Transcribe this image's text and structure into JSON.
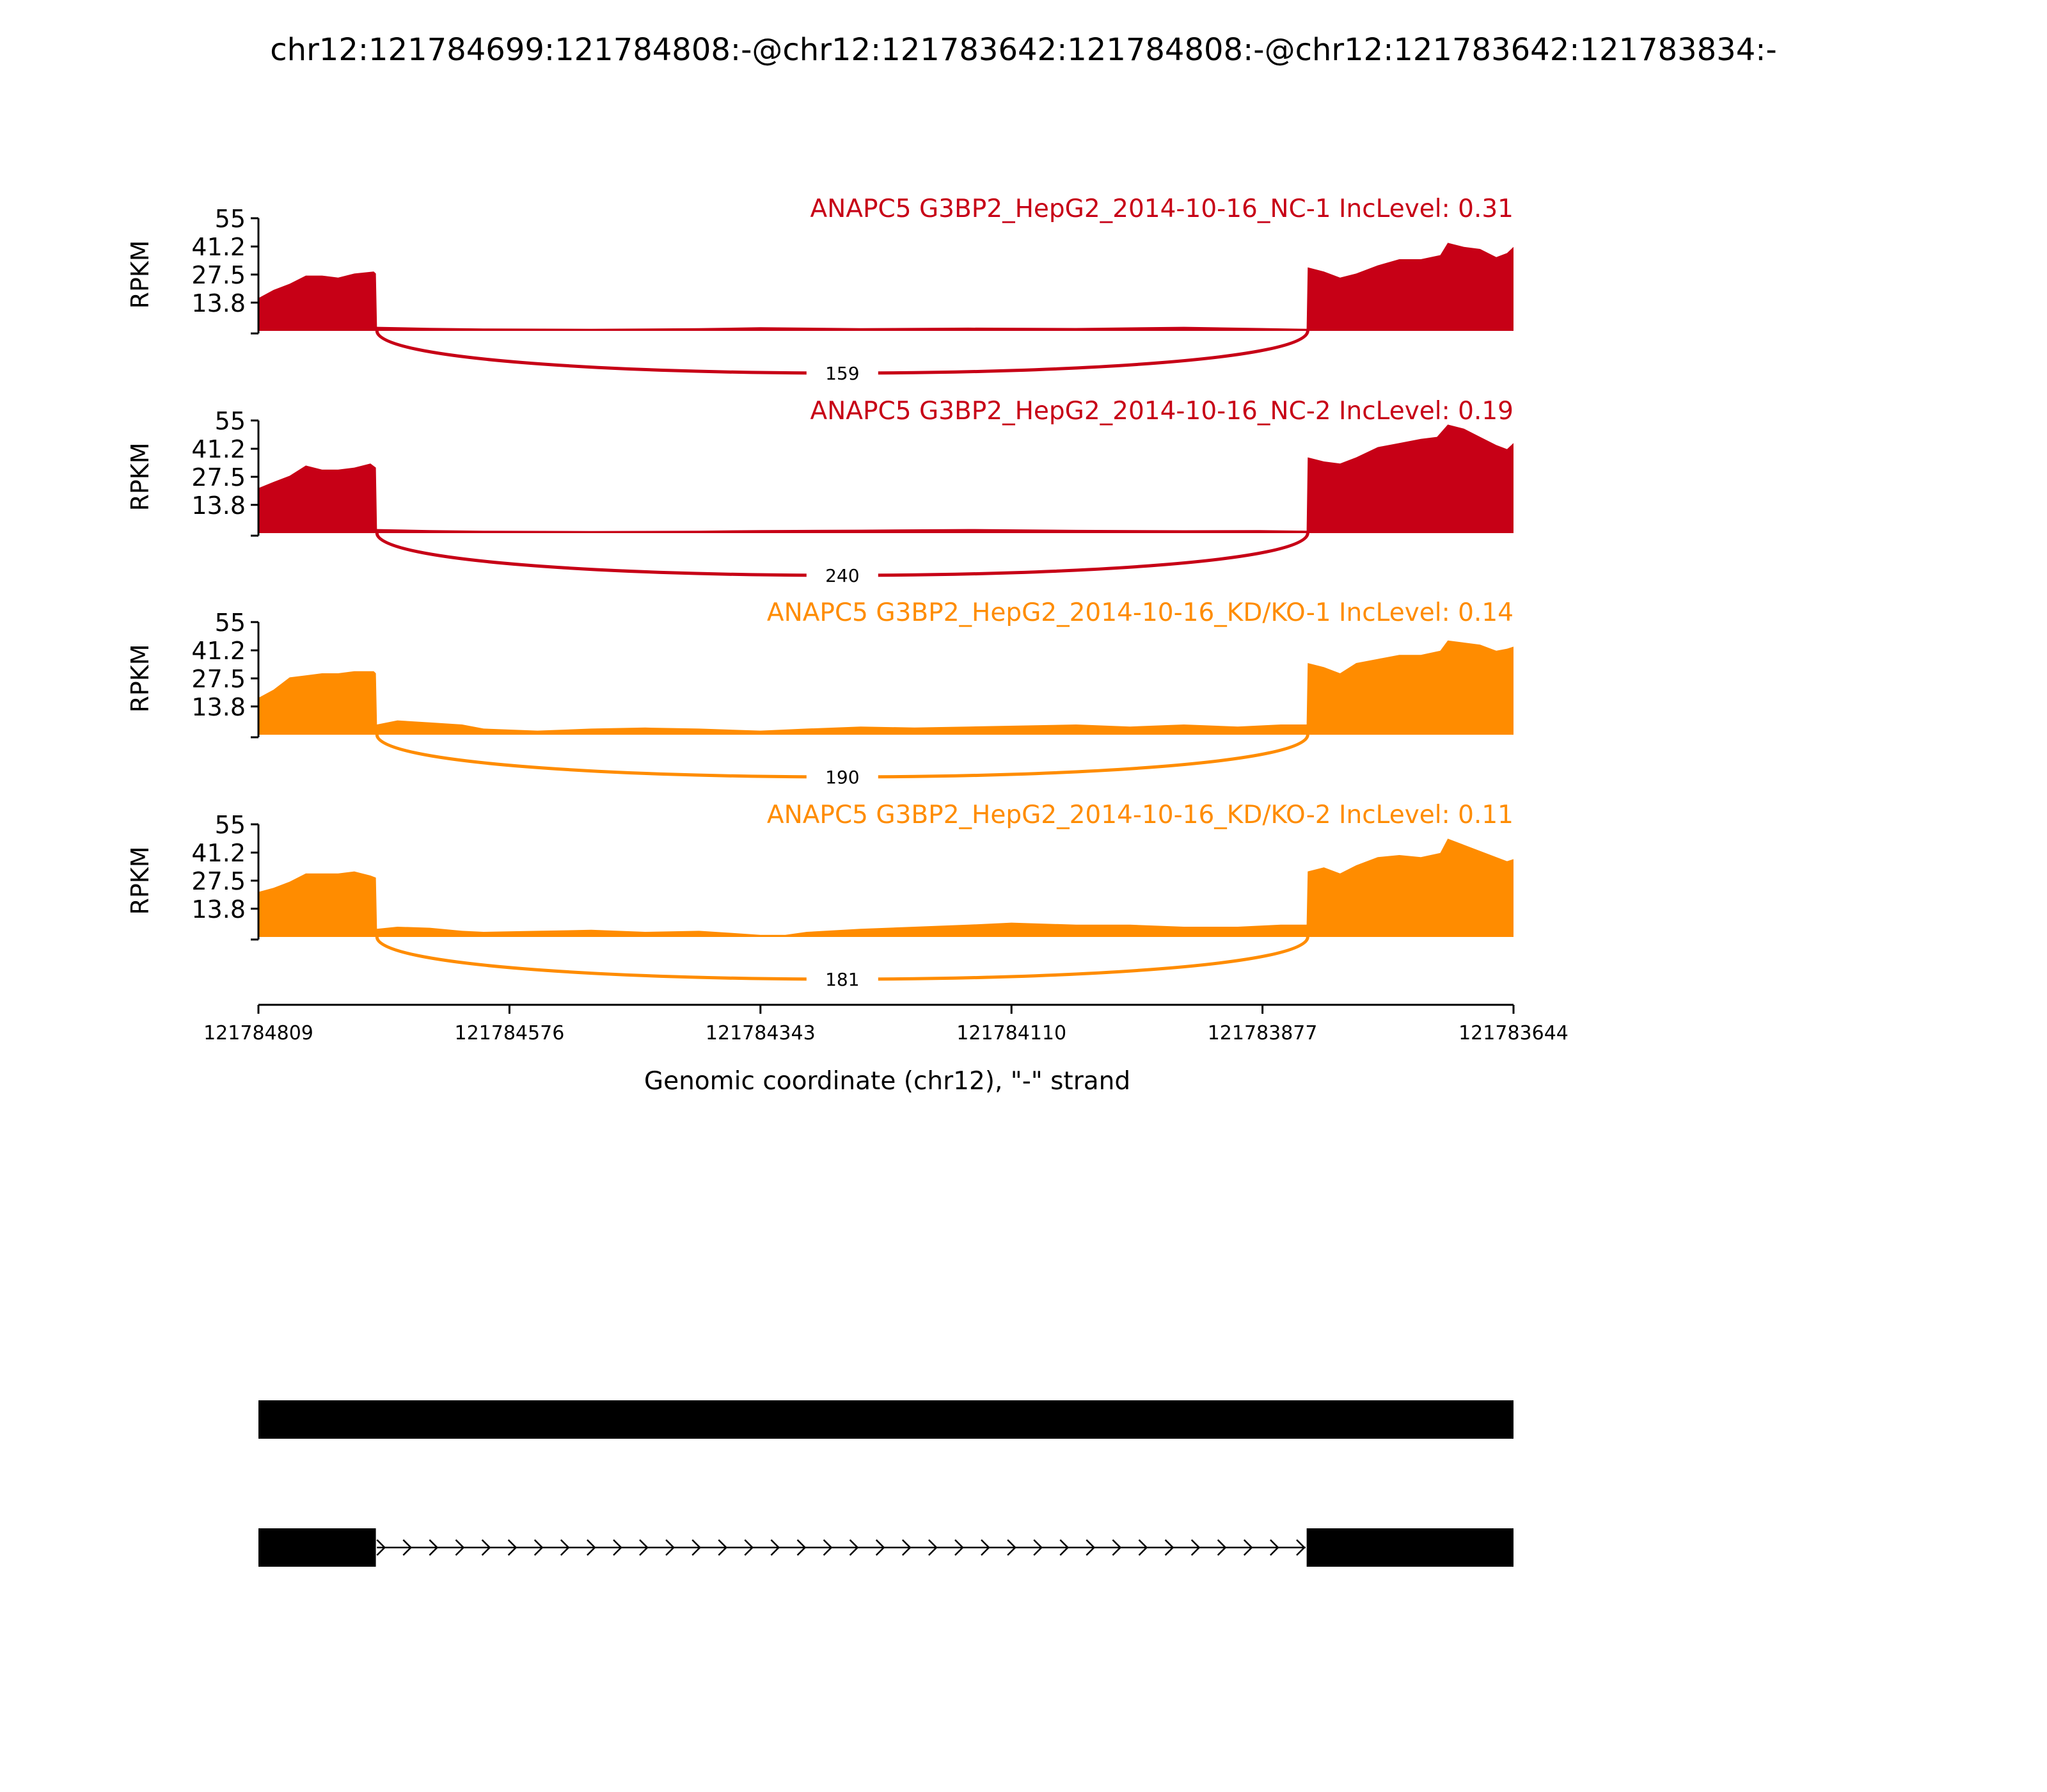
{
  "figure": {
    "title": "chr12:121784699:121784808:-@chr12:121783642:121784808:-@chr12:121783642:121783834:-"
  },
  "colors": {
    "nc": "#c70016",
    "kd": "#ff8c00",
    "gene": "#000000",
    "background": "#ffffff"
  },
  "chart_data": {
    "type": "area",
    "title": "chr12:121784699:121784808:-@chr12:121783642:121784808:-@chr12:121783642:121783834:-",
    "xlabel": "Genomic coordinate (chr12), \"-\" strand",
    "ylabel": "RPKM",
    "xlim": [
      121784809,
      121783644
    ],
    "ylim": [
      0,
      55
    ],
    "x_reversed": true,
    "xticks": [
      "121784809",
      "121784576",
      "121784343",
      "121784110",
      "121783877",
      "121783644"
    ],
    "yticks": [
      "55",
      "41.2",
      "27.5",
      "13.8"
    ],
    "grid": false,
    "tracks": [
      {
        "label": "ANAPC5 G3BP2_HepG2_2014-10-16_NC-1 IncLevel: 0.31",
        "color_key": "nc",
        "junction_count": "159",
        "profile": [
          [
            121784809,
            16
          ],
          [
            121784795,
            20
          ],
          [
            121784780,
            23
          ],
          [
            121784765,
            27
          ],
          [
            121784750,
            27
          ],
          [
            121784735,
            26
          ],
          [
            121784720,
            28
          ],
          [
            121784702,
            29
          ],
          [
            121784700,
            28
          ],
          [
            121784699,
            2
          ],
          [
            121784650,
            1.5
          ],
          [
            121784600,
            1.2
          ],
          [
            121784500,
            1
          ],
          [
            121784400,
            1.3
          ],
          [
            121784343,
            1.8
          ],
          [
            121784250,
            1.3
          ],
          [
            121784150,
            1.6
          ],
          [
            121784050,
            1.4
          ],
          [
            121783950,
            2
          ],
          [
            121783880,
            1.4
          ],
          [
            121783836,
            1
          ],
          [
            121783835,
            31
          ],
          [
            121783820,
            29
          ],
          [
            121783805,
            26
          ],
          [
            121783790,
            28
          ],
          [
            121783770,
            32
          ],
          [
            121783750,
            35
          ],
          [
            121783730,
            35
          ],
          [
            121783712,
            37
          ],
          [
            121783705,
            43
          ],
          [
            121783690,
            41
          ],
          [
            121783675,
            40
          ],
          [
            121783660,
            36
          ],
          [
            121783650,
            38
          ],
          [
            121783644,
            41
          ]
        ]
      },
      {
        "label": "ANAPC5 G3BP2_HepG2_2014-10-16_NC-2 IncLevel: 0.19",
        "color_key": "nc",
        "junction_count": "240",
        "profile": [
          [
            121784809,
            22
          ],
          [
            121784795,
            25
          ],
          [
            121784780,
            28
          ],
          [
            121784765,
            33
          ],
          [
            121784750,
            31
          ],
          [
            121784735,
            31
          ],
          [
            121784720,
            32
          ],
          [
            121784705,
            34
          ],
          [
            121784700,
            32
          ],
          [
            121784699,
            2
          ],
          [
            121784650,
            1.5
          ],
          [
            121784600,
            1.2
          ],
          [
            121784500,
            1
          ],
          [
            121784400,
            1.2
          ],
          [
            121784343,
            1.5
          ],
          [
            121784250,
            1.7
          ],
          [
            121784150,
            2
          ],
          [
            121784050,
            1.6
          ],
          [
            121783950,
            1.4
          ],
          [
            121783880,
            1.5
          ],
          [
            121783836,
            1.2
          ],
          [
            121783835,
            37
          ],
          [
            121783820,
            35
          ],
          [
            121783805,
            34
          ],
          [
            121783790,
            37
          ],
          [
            121783770,
            42
          ],
          [
            121783750,
            44
          ],
          [
            121783730,
            46
          ],
          [
            121783715,
            47
          ],
          [
            121783705,
            53
          ],
          [
            121783690,
            51
          ],
          [
            121783675,
            47
          ],
          [
            121783660,
            43
          ],
          [
            121783650,
            41
          ],
          [
            121783644,
            44
          ]
        ]
      },
      {
        "label": "ANAPC5 G3BP2_HepG2_2014-10-16_KD/KO-1 IncLevel: 0.14",
        "color_key": "kd",
        "junction_count": "190",
        "profile": [
          [
            121784809,
            18
          ],
          [
            121784795,
            22
          ],
          [
            121784780,
            28
          ],
          [
            121784765,
            29
          ],
          [
            121784750,
            30
          ],
          [
            121784735,
            30
          ],
          [
            121784720,
            31
          ],
          [
            121784702,
            31
          ],
          [
            121784700,
            30
          ],
          [
            121784699,
            5
          ],
          [
            121784680,
            7
          ],
          [
            121784650,
            6
          ],
          [
            121784620,
            5
          ],
          [
            121784600,
            3
          ],
          [
            121784550,
            2
          ],
          [
            121784500,
            3
          ],
          [
            121784450,
            3.5
          ],
          [
            121784400,
            3
          ],
          [
            121784343,
            2
          ],
          [
            121784300,
            3
          ],
          [
            121784250,
            4
          ],
          [
            121784200,
            3.5
          ],
          [
            121784150,
            4
          ],
          [
            121784100,
            4.5
          ],
          [
            121784050,
            5
          ],
          [
            121784000,
            4
          ],
          [
            121783950,
            5
          ],
          [
            121783900,
            4
          ],
          [
            121783860,
            5
          ],
          [
            121783836,
            5
          ],
          [
            121783835,
            35
          ],
          [
            121783820,
            33
          ],
          [
            121783805,
            30
          ],
          [
            121783790,
            35
          ],
          [
            121783770,
            37
          ],
          [
            121783750,
            39
          ],
          [
            121783730,
            39
          ],
          [
            121783712,
            41
          ],
          [
            121783705,
            46
          ],
          [
            121783690,
            45
          ],
          [
            121783675,
            44
          ],
          [
            121783660,
            41
          ],
          [
            121783650,
            42
          ],
          [
            121783644,
            43
          ]
        ]
      },
      {
        "label": "ANAPC5 G3BP2_HepG2_2014-10-16_KD/KO-2 IncLevel: 0.11",
        "color_key": "kd",
        "junction_count": "181",
        "profile": [
          [
            121784809,
            22
          ],
          [
            121784795,
            24
          ],
          [
            121784780,
            27
          ],
          [
            121784765,
            31
          ],
          [
            121784750,
            31
          ],
          [
            121784735,
            31
          ],
          [
            121784720,
            32
          ],
          [
            121784705,
            30
          ],
          [
            121784700,
            29
          ],
          [
            121784699,
            4
          ],
          [
            121784680,
            5
          ],
          [
            121784650,
            4.5
          ],
          [
            121784620,
            3
          ],
          [
            121784600,
            2.5
          ],
          [
            121784550,
            3
          ],
          [
            121784500,
            3.5
          ],
          [
            121784450,
            2.5
          ],
          [
            121784400,
            3
          ],
          [
            121784370,
            2
          ],
          [
            121784343,
            1
          ],
          [
            121784320,
            1
          ],
          [
            121784300,
            2.5
          ],
          [
            121784250,
            4
          ],
          [
            121784200,
            5
          ],
          [
            121784150,
            6
          ],
          [
            121784110,
            7
          ],
          [
            121784050,
            6
          ],
          [
            121784000,
            6
          ],
          [
            121783950,
            5
          ],
          [
            121783900,
            5
          ],
          [
            121783860,
            6
          ],
          [
            121783836,
            6
          ],
          [
            121783835,
            32
          ],
          [
            121783820,
            34
          ],
          [
            121783805,
            31
          ],
          [
            121783790,
            35
          ],
          [
            121783770,
            39
          ],
          [
            121783750,
            40
          ],
          [
            121783730,
            39
          ],
          [
            121783712,
            41
          ],
          [
            121783705,
            48
          ],
          [
            121783690,
            45
          ],
          [
            121783675,
            42
          ],
          [
            121783660,
            39
          ],
          [
            121783650,
            37
          ],
          [
            121783644,
            38
          ]
        ]
      }
    ],
    "junction": {
      "start": 121784699,
      "end": 121783835
    },
    "gene_models": [
      {
        "exons": [
          [
            121784809,
            121783644
          ]
        ]
      },
      {
        "exons": [
          [
            121784809,
            121784700
          ],
          [
            121783836,
            121783644
          ]
        ],
        "intron": [
          121784699,
          121783837
        ]
      }
    ]
  }
}
